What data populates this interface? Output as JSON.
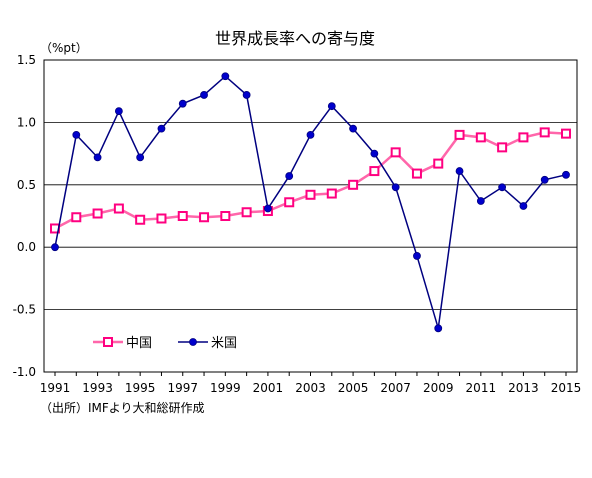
{
  "chart_data": {
    "type": "line",
    "title": "世界成長率への寄与度",
    "unit_label": "（%pt）",
    "source_note": "（出所）IMFより大和総研作成",
    "x": [
      1991,
      1992,
      1993,
      1994,
      1995,
      1996,
      1997,
      1998,
      1999,
      2000,
      2001,
      2002,
      2003,
      2004,
      2005,
      2006,
      2007,
      2008,
      2009,
      2010,
      2011,
      2012,
      2013,
      2014,
      2015
    ],
    "x_tick_labels": [
      "1991",
      "1993",
      "1995",
      "1997",
      "1999",
      "2001",
      "2003",
      "2005",
      "2007",
      "2009",
      "2011",
      "2013",
      "2015"
    ],
    "y_tick_labels": [
      "1.5",
      "1.0",
      "0.5",
      "0.0",
      "-0.5",
      "-1.0"
    ],
    "ylim": [
      -1.0,
      1.5
    ],
    "grid": true,
    "legend_position": "lower-left",
    "series": [
      {
        "name": "中国",
        "color": "#ff0080",
        "line_color": "#ff66aa",
        "marker": "square",
        "values": [
          0.15,
          0.24,
          0.27,
          0.31,
          0.22,
          0.23,
          0.25,
          0.24,
          0.25,
          0.28,
          0.29,
          0.36,
          0.42,
          0.43,
          0.5,
          0.61,
          0.76,
          0.59,
          0.67,
          0.9,
          0.88,
          0.8,
          0.88,
          0.92,
          0.91
        ]
      },
      {
        "name": "米国",
        "color": "#0000cc",
        "line_color": "#000080",
        "marker": "circle",
        "values": [
          0.0,
          0.9,
          0.72,
          1.09,
          0.72,
          0.95,
          1.15,
          1.22,
          1.37,
          1.22,
          0.31,
          0.57,
          0.9,
          1.13,
          0.95,
          0.75,
          0.48,
          -0.07,
          -0.65,
          0.61,
          0.37,
          0.48,
          0.33,
          0.54,
          0.58
        ]
      }
    ]
  }
}
